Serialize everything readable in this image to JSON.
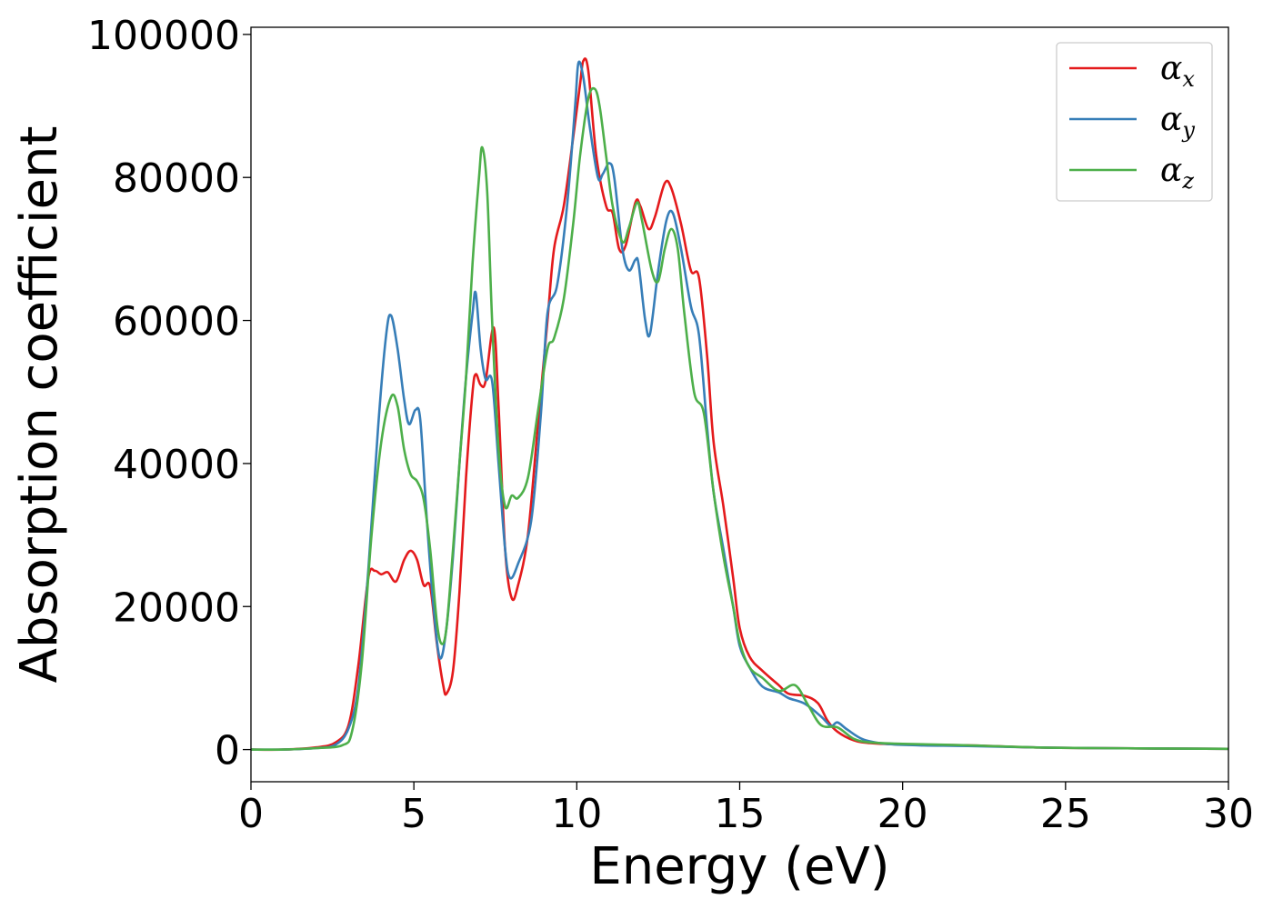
{
  "chart_data": {
    "type": "line",
    "title": "",
    "xlabel": "Energy (eV)",
    "ylabel": "Absorption coefficient",
    "xlim": [
      0,
      30
    ],
    "ylim": [
      -4500,
      101000
    ],
    "xticks": [
      0,
      5,
      10,
      15,
      20,
      25,
      30
    ],
    "yticks": [
      0,
      20000,
      40000,
      60000,
      80000,
      100000
    ],
    "xtick_labels": [
      "0",
      "5",
      "10",
      "15",
      "20",
      "25",
      "30"
    ],
    "ytick_labels": [
      "0",
      "20000",
      "40000",
      "60000",
      "80000",
      "100000"
    ],
    "grid": false,
    "legend_position": "top-right",
    "series": [
      {
        "name": "α",
        "subscript": "x",
        "color": "#e41a1c",
        "points": [
          [
            0,
            0
          ],
          [
            1,
            0
          ],
          [
            2,
            300
          ],
          [
            2.6,
            1000
          ],
          [
            3,
            3500
          ],
          [
            3.3,
            12000
          ],
          [
            3.6,
            24000
          ],
          [
            3.8,
            25000
          ],
          [
            4,
            24500
          ],
          [
            4.2,
            24800
          ],
          [
            4.45,
            23500
          ],
          [
            4.7,
            26500
          ],
          [
            4.9,
            27800
          ],
          [
            5.1,
            26500
          ],
          [
            5.3,
            23000
          ],
          [
            5.5,
            22800
          ],
          [
            5.7,
            15000
          ],
          [
            5.9,
            9000
          ],
          [
            6.0,
            7800
          ],
          [
            6.2,
            11000
          ],
          [
            6.4,
            22000
          ],
          [
            6.6,
            38000
          ],
          [
            6.8,
            50000
          ],
          [
            6.9,
            52500
          ],
          [
            7.05,
            51000
          ],
          [
            7.2,
            51500
          ],
          [
            7.45,
            59000
          ],
          [
            7.6,
            48000
          ],
          [
            7.8,
            28000
          ],
          [
            8.0,
            21200
          ],
          [
            8.2,
            23000
          ],
          [
            8.5,
            30000
          ],
          [
            8.8,
            45000
          ],
          [
            9.1,
            60000
          ],
          [
            9.3,
            70000
          ],
          [
            9.6,
            76000
          ],
          [
            9.9,
            86000
          ],
          [
            10.1,
            93000
          ],
          [
            10.2,
            96300
          ],
          [
            10.35,
            95000
          ],
          [
            10.6,
            83000
          ],
          [
            10.9,
            76000
          ],
          [
            11.1,
            75000
          ],
          [
            11.3,
            70000
          ],
          [
            11.5,
            70500
          ],
          [
            11.8,
            76500
          ],
          [
            11.95,
            76000
          ],
          [
            12.2,
            72800
          ],
          [
            12.4,
            74500
          ],
          [
            12.7,
            79200
          ],
          [
            12.9,
            78500
          ],
          [
            13.2,
            73500
          ],
          [
            13.5,
            67000
          ],
          [
            13.75,
            66000
          ],
          [
            14.0,
            55000
          ],
          [
            14.2,
            43000
          ],
          [
            14.5,
            34000
          ],
          [
            14.8,
            24000
          ],
          [
            15.0,
            17000
          ],
          [
            15.3,
            13000
          ],
          [
            15.7,
            11000
          ],
          [
            16.2,
            9000
          ],
          [
            16.5,
            7800
          ],
          [
            17.0,
            7500
          ],
          [
            17.4,
            6500
          ],
          [
            17.7,
            4000
          ],
          [
            18.0,
            2500
          ],
          [
            18.5,
            1300
          ],
          [
            19.0,
            900
          ],
          [
            20.0,
            700
          ],
          [
            22.0,
            600
          ],
          [
            24.0,
            300
          ],
          [
            26.0,
            200
          ],
          [
            30.0,
            100
          ]
        ]
      },
      {
        "name": "α",
        "subscript": "y",
        "color": "#377eb8",
        "points": [
          [
            0,
            0
          ],
          [
            1,
            0
          ],
          [
            2,
            200
          ],
          [
            2.6,
            700
          ],
          [
            3,
            3000
          ],
          [
            3.3,
            9000
          ],
          [
            3.6,
            25000
          ],
          [
            3.9,
            45000
          ],
          [
            4.15,
            58000
          ],
          [
            4.3,
            60700
          ],
          [
            4.5,
            56000
          ],
          [
            4.7,
            49000
          ],
          [
            4.85,
            45500
          ],
          [
            5.05,
            47500
          ],
          [
            5.2,
            46000
          ],
          [
            5.4,
            32000
          ],
          [
            5.6,
            20000
          ],
          [
            5.8,
            12800
          ],
          [
            6.0,
            17000
          ],
          [
            6.2,
            27000
          ],
          [
            6.4,
            40000
          ],
          [
            6.6,
            52000
          ],
          [
            6.8,
            61000
          ],
          [
            6.9,
            63800
          ],
          [
            7.05,
            56000
          ],
          [
            7.2,
            51800
          ],
          [
            7.4,
            51500
          ],
          [
            7.6,
            40000
          ],
          [
            7.8,
            28000
          ],
          [
            7.95,
            24000
          ],
          [
            8.2,
            26000
          ],
          [
            8.6,
            32000
          ],
          [
            8.9,
            47000
          ],
          [
            9.1,
            61000
          ],
          [
            9.4,
            65000
          ],
          [
            9.7,
            76000
          ],
          [
            9.95,
            90000
          ],
          [
            10.05,
            96000
          ],
          [
            10.2,
            94000
          ],
          [
            10.4,
            87000
          ],
          [
            10.65,
            80000
          ],
          [
            10.8,
            80500
          ],
          [
            11.0,
            82000
          ],
          [
            11.15,
            80000
          ],
          [
            11.4,
            70000
          ],
          [
            11.6,
            67000
          ],
          [
            11.8,
            68500
          ],
          [
            11.9,
            67800
          ],
          [
            12.1,
            60000
          ],
          [
            12.25,
            58200
          ],
          [
            12.5,
            67000
          ],
          [
            12.75,
            74000
          ],
          [
            12.95,
            75000
          ],
          [
            13.2,
            70000
          ],
          [
            13.5,
            62000
          ],
          [
            13.75,
            58000
          ],
          [
            14.0,
            45000
          ],
          [
            14.2,
            36000
          ],
          [
            14.5,
            28000
          ],
          [
            14.8,
            20000
          ],
          [
            15.0,
            14500
          ],
          [
            15.3,
            11500
          ],
          [
            15.7,
            8800
          ],
          [
            16.2,
            8000
          ],
          [
            16.5,
            7200
          ],
          [
            17.0,
            6400
          ],
          [
            17.5,
            4600
          ],
          [
            17.8,
            3300
          ],
          [
            18.0,
            3800
          ],
          [
            18.3,
            2800
          ],
          [
            18.8,
            1400
          ],
          [
            19.5,
            800
          ],
          [
            20.5,
            600
          ],
          [
            22.0,
            500
          ],
          [
            24.0,
            300
          ],
          [
            26.0,
            200
          ],
          [
            30.0,
            100
          ]
        ]
      },
      {
        "name": "α",
        "subscript": "z",
        "color": "#4daf4a",
        "points": [
          [
            0,
            0
          ],
          [
            1,
            0
          ],
          [
            2,
            200
          ],
          [
            2.8,
            600
          ],
          [
            3.1,
            2500
          ],
          [
            3.4,
            12000
          ],
          [
            3.7,
            30000
          ],
          [
            4.0,
            43000
          ],
          [
            4.3,
            49300
          ],
          [
            4.5,
            48000
          ],
          [
            4.7,
            42000
          ],
          [
            4.9,
            38500
          ],
          [
            5.1,
            37500
          ],
          [
            5.3,
            35000
          ],
          [
            5.5,
            28000
          ],
          [
            5.7,
            18000
          ],
          [
            5.85,
            14800
          ],
          [
            6.0,
            17000
          ],
          [
            6.2,
            28000
          ],
          [
            6.4,
            40000
          ],
          [
            6.6,
            52000
          ],
          [
            6.8,
            68000
          ],
          [
            7.0,
            80000
          ],
          [
            7.1,
            84200
          ],
          [
            7.25,
            78000
          ],
          [
            7.4,
            60000
          ],
          [
            7.6,
            42000
          ],
          [
            7.8,
            34000
          ],
          [
            8.0,
            35500
          ],
          [
            8.2,
            35200
          ],
          [
            8.5,
            38000
          ],
          [
            8.8,
            47000
          ],
          [
            9.1,
            56000
          ],
          [
            9.3,
            57500
          ],
          [
            9.6,
            63000
          ],
          [
            9.9,
            74000
          ],
          [
            10.1,
            83000
          ],
          [
            10.35,
            91000
          ],
          [
            10.55,
            92400
          ],
          [
            10.7,
            90000
          ],
          [
            10.9,
            83000
          ],
          [
            11.1,
            76000
          ],
          [
            11.4,
            71000
          ],
          [
            11.6,
            73000
          ],
          [
            11.85,
            76500
          ],
          [
            12.0,
            74000
          ],
          [
            12.3,
            67000
          ],
          [
            12.5,
            65500
          ],
          [
            12.7,
            70000
          ],
          [
            12.9,
            72800
          ],
          [
            13.1,
            70000
          ],
          [
            13.3,
            61000
          ],
          [
            13.6,
            50000
          ],
          [
            13.9,
            47000
          ],
          [
            14.2,
            36000
          ],
          [
            14.5,
            27000
          ],
          [
            14.8,
            20000
          ],
          [
            15.0,
            15000
          ],
          [
            15.3,
            11500
          ],
          [
            15.7,
            10000
          ],
          [
            16.2,
            8200
          ],
          [
            16.7,
            9000
          ],
          [
            17.1,
            6200
          ],
          [
            17.5,
            3400
          ],
          [
            18.0,
            3100
          ],
          [
            18.5,
            1500
          ],
          [
            19.0,
            1000
          ],
          [
            20.0,
            800
          ],
          [
            22.0,
            600
          ],
          [
            24.0,
            300
          ],
          [
            26.0,
            200
          ],
          [
            30.0,
            100
          ]
        ]
      }
    ]
  }
}
